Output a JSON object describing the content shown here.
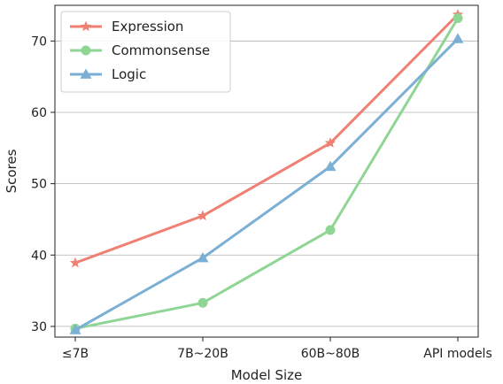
{
  "chart_data": {
    "type": "line",
    "title": "",
    "xlabel": "Model Size",
    "ylabel": "Scores",
    "categories": [
      "≤7B",
      "7B~20B",
      "60B~80B",
      "API models"
    ],
    "ylim": [
      28.5,
      75
    ],
    "yticks": [
      30,
      40,
      50,
      60,
      70
    ],
    "grid": "horizontal",
    "legend_position": "top-left",
    "series": [
      {
        "name": "Expression",
        "values": [
          38.9,
          45.5,
          55.7,
          73.7
        ],
        "color": "#f08073",
        "marker": "star"
      },
      {
        "name": "Commonsense",
        "values": [
          29.7,
          33.3,
          43.5,
          73.2
        ],
        "color": "#8fd694",
        "marker": "circle"
      },
      {
        "name": "Logic",
        "values": [
          29.5,
          39.6,
          52.4,
          70.3
        ],
        "color": "#7bafd4",
        "marker": "triangle"
      }
    ]
  }
}
